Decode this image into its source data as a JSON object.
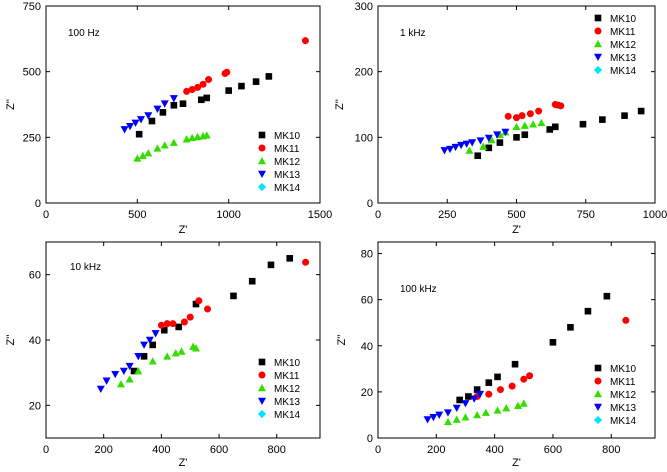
{
  "colors": {
    "MK10": "#000000",
    "MK11": "#ff0000",
    "MK12": "#33dd00",
    "MK13": "#0000ff",
    "MK14": "#00e5ff"
  },
  "chart_data": [
    {
      "type": "scatter",
      "title": "100 Hz",
      "xlabel": "Z'",
      "ylabel": "Z''",
      "xlim": [
        0,
        1500
      ],
      "ylim": [
        0,
        750
      ],
      "xticks": [
        0,
        500,
        1000,
        1500
      ],
      "yticks": [
        0,
        250,
        500,
        750
      ],
      "legend": "bottom-right",
      "series": [
        {
          "name": "MK10",
          "marker": "square",
          "x": [
            510,
            580,
            640,
            700,
            750,
            850,
            880,
            1000,
            1070,
            1150,
            1220
          ],
          "y": [
            262,
            312,
            345,
            372,
            378,
            393,
            400,
            428,
            445,
            462,
            482
          ]
        },
        {
          "name": "MK11",
          "marker": "circle",
          "x": [
            770,
            800,
            830,
            860,
            890,
            980,
            990,
            1420
          ],
          "y": [
            425,
            432,
            440,
            452,
            470,
            493,
            498,
            618
          ]
        },
        {
          "name": "MK12",
          "marker": "triangle-up",
          "x": [
            500,
            530,
            560,
            610,
            650,
            700,
            770,
            800,
            830,
            860,
            880
          ],
          "y": [
            170,
            180,
            190,
            208,
            220,
            230,
            243,
            248,
            252,
            255,
            258
          ]
        },
        {
          "name": "MK13",
          "marker": "triangle-down",
          "x": [
            430,
            460,
            490,
            520,
            560,
            610,
            650,
            700
          ],
          "y": [
            280,
            292,
            305,
            318,
            333,
            358,
            378,
            398
          ]
        },
        {
          "name": "MK14",
          "marker": "diamond",
          "x": [],
          "y": []
        }
      ]
    },
    {
      "type": "scatter",
      "title": "1 kHz",
      "xlabel": "Z'",
      "ylabel": "Z''",
      "xlim": [
        0,
        1000
      ],
      "ylim": [
        0,
        300
      ],
      "xticks": [
        0,
        250,
        500,
        750,
        1000
      ],
      "yticks": [
        0,
        100,
        200,
        300
      ],
      "legend": "top-right",
      "series": [
        {
          "name": "MK10",
          "marker": "square",
          "x": [
            360,
            400,
            440,
            500,
            530,
            620,
            640,
            740,
            810,
            890,
            950
          ],
          "y": [
            72,
            84,
            92,
            100,
            104,
            112,
            116,
            120,
            127,
            133,
            140
          ]
        },
        {
          "name": "MK11",
          "marker": "circle",
          "x": [
            470,
            500,
            520,
            550,
            580,
            640,
            650,
            660
          ],
          "y": [
            132,
            130,
            133,
            136,
            140,
            150,
            149,
            148
          ]
        },
        {
          "name": "MK12",
          "marker": "triangle-up",
          "x": [
            330,
            380,
            410,
            440,
            460,
            500,
            530,
            560,
            590
          ],
          "y": [
            80,
            86,
            96,
            104,
            108,
            116,
            118,
            120,
            122
          ]
        },
        {
          "name": "MK13",
          "marker": "triangle-down",
          "x": [
            240,
            260,
            280,
            300,
            320,
            340,
            370,
            400,
            430,
            460
          ],
          "y": [
            80,
            82,
            85,
            88,
            90,
            92,
            95,
            99,
            104,
            108
          ]
        },
        {
          "name": "MK14",
          "marker": "diamond",
          "x": [],
          "y": []
        }
      ]
    },
    {
      "type": "scatter",
      "title": "10 kHz",
      "xlabel": "Z'",
      "ylabel": "Z''",
      "xlim": [
        0,
        950
      ],
      "ylim": [
        10,
        70
      ],
      "xticks": [
        0,
        200,
        400,
        600,
        800
      ],
      "yticks": [
        20,
        40,
        60
      ],
      "legend": "bottom-right",
      "series": [
        {
          "name": "MK10",
          "marker": "square",
          "x": [
            305,
            340,
            370,
            410,
            460,
            520,
            650,
            715,
            780,
            845
          ],
          "y": [
            30.5,
            35,
            38.5,
            43,
            44,
            51,
            53.5,
            58,
            63,
            65
          ]
        },
        {
          "name": "MK11",
          "marker": "circle",
          "x": [
            400,
            420,
            440,
            480,
            500,
            530,
            560,
            900
          ],
          "y": [
            44.5,
            45,
            45,
            45.5,
            47,
            52,
            49.5,
            63.8
          ]
        },
        {
          "name": "MK12",
          "marker": "triangle-up",
          "x": [
            260,
            290,
            320,
            370,
            420,
            450,
            470,
            510,
            520
          ],
          "y": [
            26.5,
            28,
            30.5,
            33.5,
            35,
            36,
            36.5,
            38,
            37.5
          ]
        },
        {
          "name": "MK13",
          "marker": "triangle-down",
          "x": [
            190,
            210,
            240,
            270,
            290,
            320,
            340,
            360,
            380
          ],
          "y": [
            25,
            27.5,
            29.5,
            30.5,
            32,
            35,
            38.5,
            40,
            42
          ]
        },
        {
          "name": "MK14",
          "marker": "diamond",
          "x": [],
          "y": []
        }
      ]
    },
    {
      "type": "scatter",
      "title": "100 kHz",
      "xlabel": "Z'",
      "ylabel": "Z''",
      "xlim": [
        0,
        950
      ],
      "ylim": [
        0,
        85
      ],
      "xticks": [
        0,
        200,
        400,
        600,
        800
      ],
      "yticks": [
        0,
        20,
        40,
        60,
        80
      ],
      "legend": "bottom-right",
      "series": [
        {
          "name": "MK10",
          "marker": "square",
          "x": [
            280,
            310,
            340,
            380,
            410,
            470,
            600,
            660,
            720,
            785
          ],
          "y": [
            16.5,
            18,
            21,
            24,
            26.5,
            32,
            41.5,
            48,
            55,
            61.5
          ]
        },
        {
          "name": "MK11",
          "marker": "circle",
          "x": [
            340,
            380,
            420,
            460,
            500,
            520,
            850
          ],
          "y": [
            18,
            19,
            21,
            22.5,
            25.5,
            27,
            51
          ]
        },
        {
          "name": "MK12",
          "marker": "triangle-up",
          "x": [
            240,
            270,
            300,
            340,
            370,
            410,
            440,
            480,
            500
          ],
          "y": [
            7,
            8,
            9,
            10,
            11,
            12,
            13,
            14,
            15
          ]
        },
        {
          "name": "MK13",
          "marker": "triangle-down",
          "x": [
            170,
            190,
            210,
            240,
            270,
            300,
            330,
            350
          ],
          "y": [
            8,
            9,
            10,
            11,
            13,
            15,
            17,
            19
          ]
        },
        {
          "name": "MK14",
          "marker": "diamond",
          "x": [],
          "y": []
        }
      ]
    }
  ]
}
